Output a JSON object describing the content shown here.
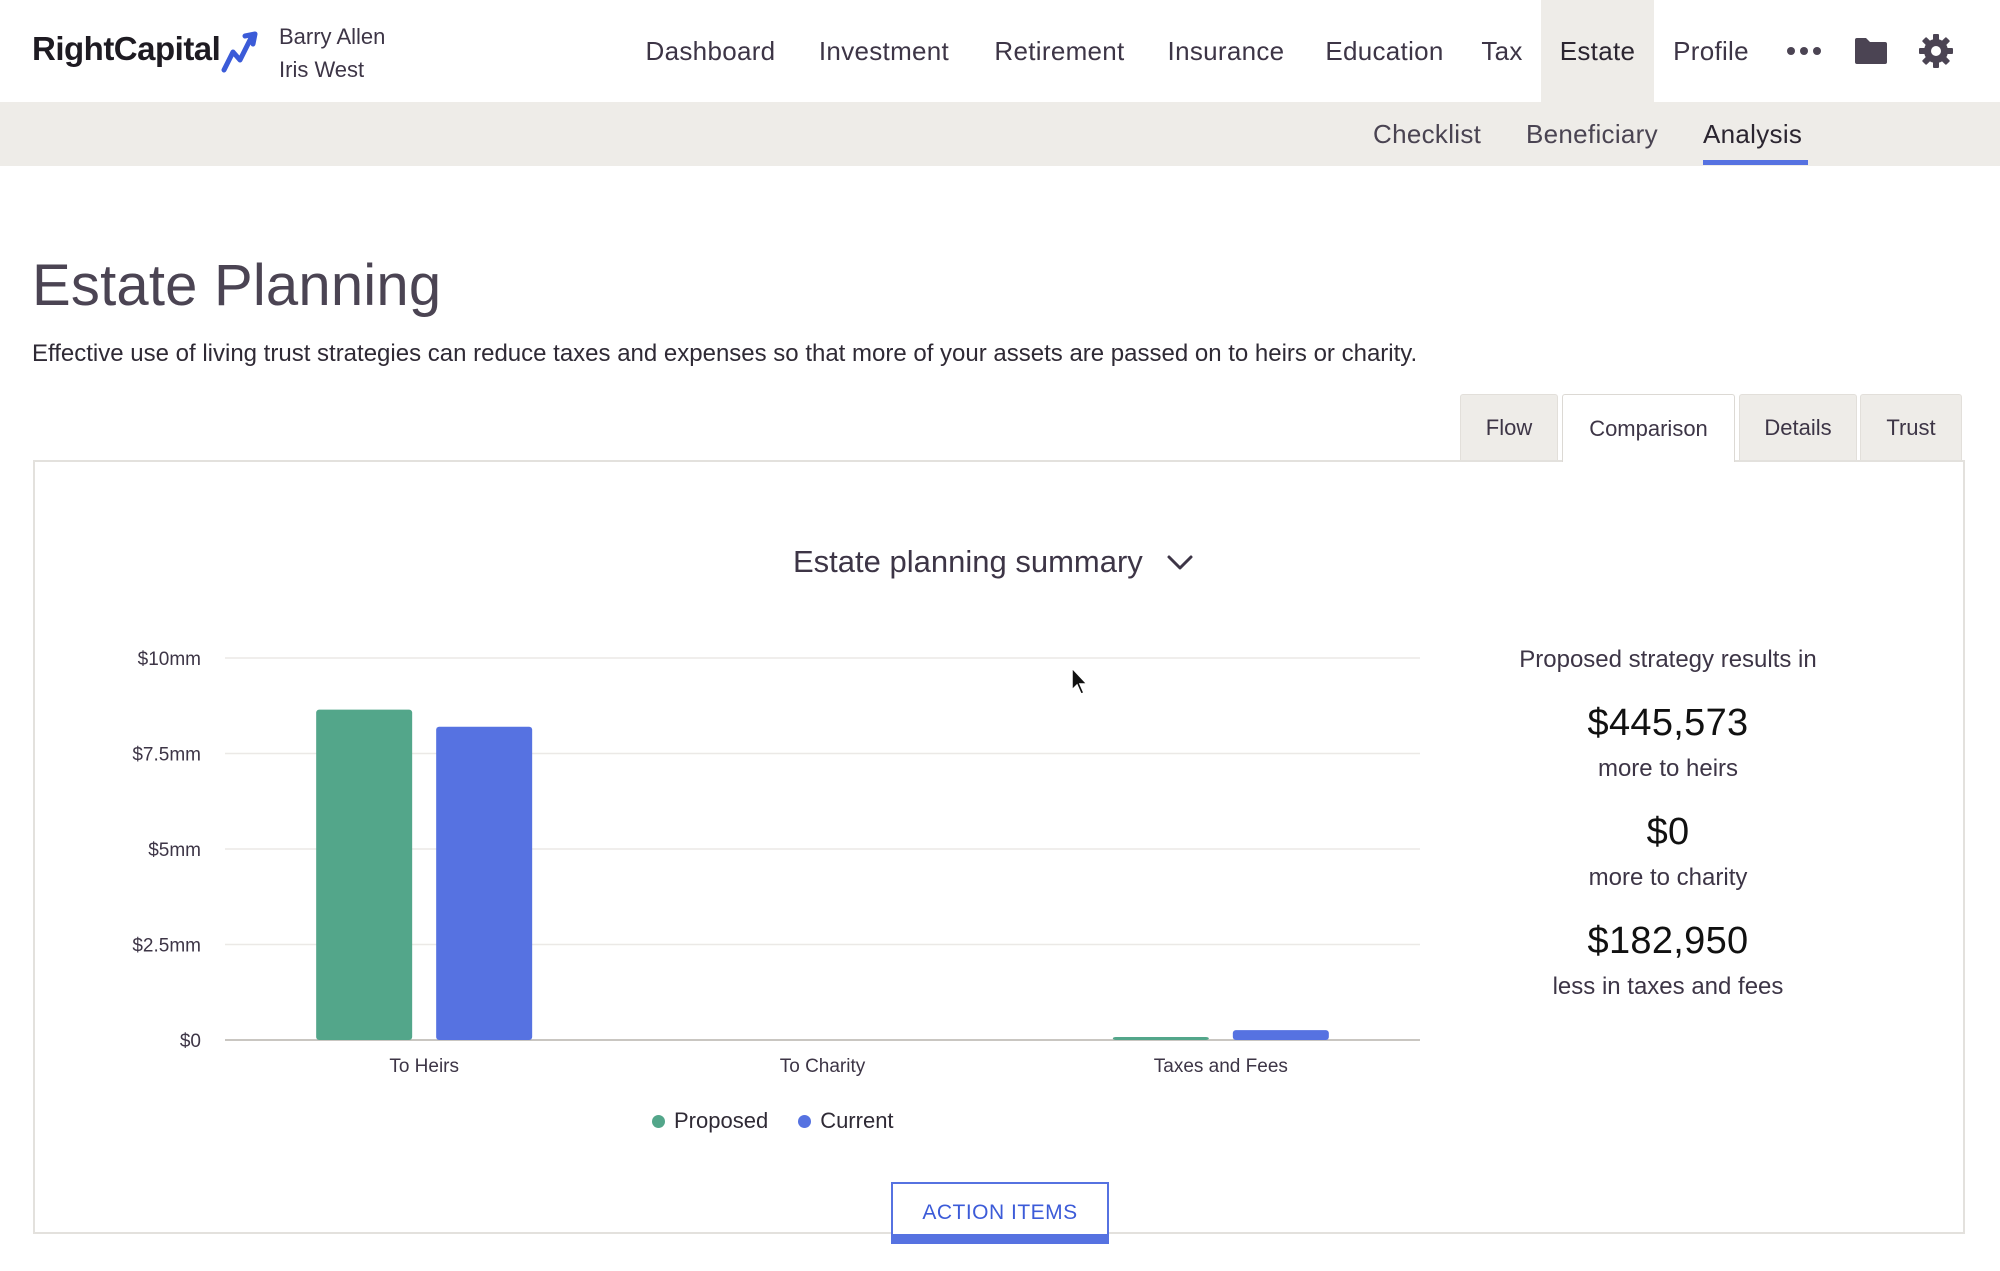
{
  "brand": {
    "name": "RightCapital"
  },
  "clients": [
    "Barry Allen",
    "Iris West"
  ],
  "nav": {
    "items": [
      "Dashboard",
      "Investment",
      "Retirement",
      "Insurance",
      "Education",
      "Tax",
      "Estate",
      "Profile"
    ],
    "active": "Estate",
    "icons": [
      "more-icon",
      "folder-icon",
      "gear-icon"
    ]
  },
  "subnav": {
    "items": [
      "Checklist",
      "Beneficiary",
      "Analysis"
    ],
    "active": "Analysis"
  },
  "page": {
    "title": "Estate Planning",
    "description": "Effective use of living trust strategies can reduce taxes and expenses so that more of your assets are passed on to heirs or charity."
  },
  "tabs": {
    "items": [
      "Flow",
      "Comparison",
      "Details",
      "Trust"
    ],
    "active": "Comparison"
  },
  "summary_select": {
    "value": "Estate planning summary"
  },
  "chart_data": {
    "type": "bar",
    "categories": [
      "To Heirs",
      "To Charity",
      "Taxes and Fees"
    ],
    "series": [
      {
        "name": "Proposed",
        "color": "#53a68a",
        "values": [
          8650000,
          0,
          80000
        ]
      },
      {
        "name": "Current",
        "color": "#5672e1",
        "values": [
          8200000,
          0,
          260000
        ]
      }
    ],
    "ylim": [
      0,
      10000000
    ],
    "yticks": [
      0,
      2500000,
      5000000,
      7500000,
      10000000
    ],
    "ytick_labels": [
      "$0",
      "$2.5mm",
      "$5mm",
      "$7.5mm",
      "$10mm"
    ],
    "grid": true,
    "legend": "bottom"
  },
  "results": {
    "lead": "Proposed strategy results in",
    "items": [
      {
        "value": "$445,573",
        "label": "more to heirs"
      },
      {
        "value": "$0",
        "label": "more to charity"
      },
      {
        "value": "$182,950",
        "label": "less in taxes and fees"
      }
    ]
  },
  "action_button": {
    "label": "ACTION ITEMS"
  },
  "colors": {
    "accent": "#5672e1",
    "proposed": "#53a68a",
    "current": "#5672e1",
    "nav_active_bg": "#eeece8"
  }
}
